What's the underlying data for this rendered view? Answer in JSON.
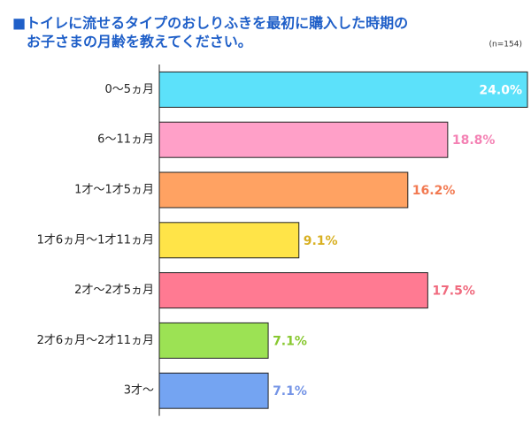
{
  "chart_data": {
    "type": "bar",
    "orientation": "horizontal",
    "title": [
      "■トイレに流せるタイプのおしりふきを最初に購入した時期の",
      "お子さまの月齢を教えてください。"
    ],
    "note": "(n=154)",
    "categories": [
      "0〜5ヵ月",
      "6〜11ヵ月",
      "1才〜1才5ヵ月",
      "1才6ヵ月〜1才11ヵ月",
      "2才〜2才5ヵ月",
      "2才6ヵ月〜2才11ヵ月",
      "3才〜"
    ],
    "values": [
      24.0,
      18.8,
      16.2,
      9.1,
      17.5,
      7.1,
      7.1
    ],
    "value_labels": [
      "24.0%",
      "18.8%",
      "16.2%",
      "9.1%",
      "17.5%",
      "7.1%",
      "7.1%"
    ],
    "colors": [
      "#5ce1fa",
      "#ffa0c8",
      "#ffa262",
      "#ffe448",
      "#ff7a92",
      "#9ce254",
      "#74a4f2"
    ],
    "label_colors": [
      "#ffffff",
      "#f482b4",
      "#f27a52",
      "#d8b022",
      "#f06a7e",
      "#88c830",
      "#7494e6"
    ]
  }
}
